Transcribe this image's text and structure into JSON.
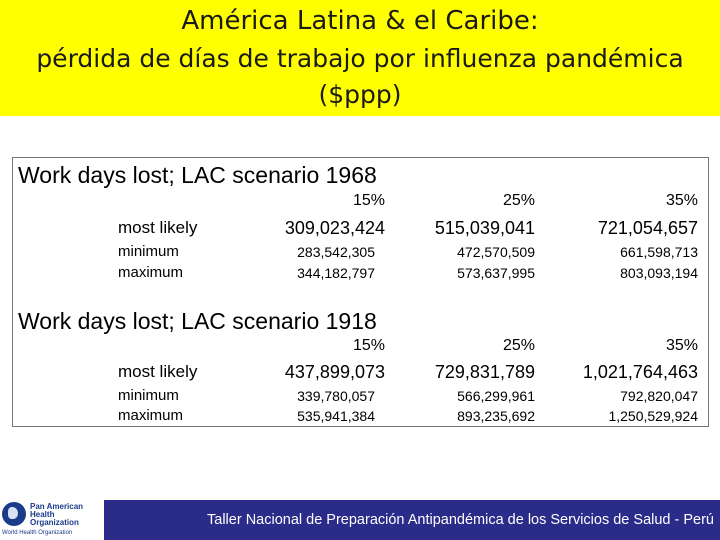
{
  "title": {
    "line1": "América Latina & el Caribe:",
    "line2": "pérdida de días de trabajo por influenza pandémica",
    "line3": "($ppp)"
  },
  "table": {
    "columns": [
      "15%",
      "25%",
      "35%"
    ],
    "scenarios": [
      {
        "title": "Work days lost; LAC scenario 1968",
        "rows": [
          {
            "label": "most likely",
            "values": [
              "309,023,424",
              "515,039,041",
              "721,054,657"
            ]
          },
          {
            "label": "minimum",
            "values": [
              "283,542,305",
              "472,570,509",
              "661,598,713"
            ]
          },
          {
            "label": "maximum",
            "values": [
              "344,182,797",
              "573,637,995",
              "803,093,194"
            ]
          }
        ]
      },
      {
        "title": "Work days lost; LAC scenario 1918",
        "rows": [
          {
            "label": "most likely",
            "values": [
              "437,899,073",
              "729,831,789",
              "1,021,764,463"
            ]
          },
          {
            "label": "minimum",
            "values": [
              "339,780,057",
              "566,299,961",
              "792,820,047"
            ]
          },
          {
            "label": "maximum",
            "values": [
              "535,941,384",
              "893,235,692",
              "1,250,529,924"
            ]
          }
        ]
      }
    ]
  },
  "footer": {
    "logo_lines": [
      "Pan American",
      "Health",
      "Organization"
    ],
    "logo_sub": "World Health Organization",
    "text": "Taller Nacional de Preparación Antipandémica de los Servicios de Salud - Perú"
  },
  "colors": {
    "title_bg": "#ffff00",
    "footer_bg": "#2b2b8a"
  }
}
